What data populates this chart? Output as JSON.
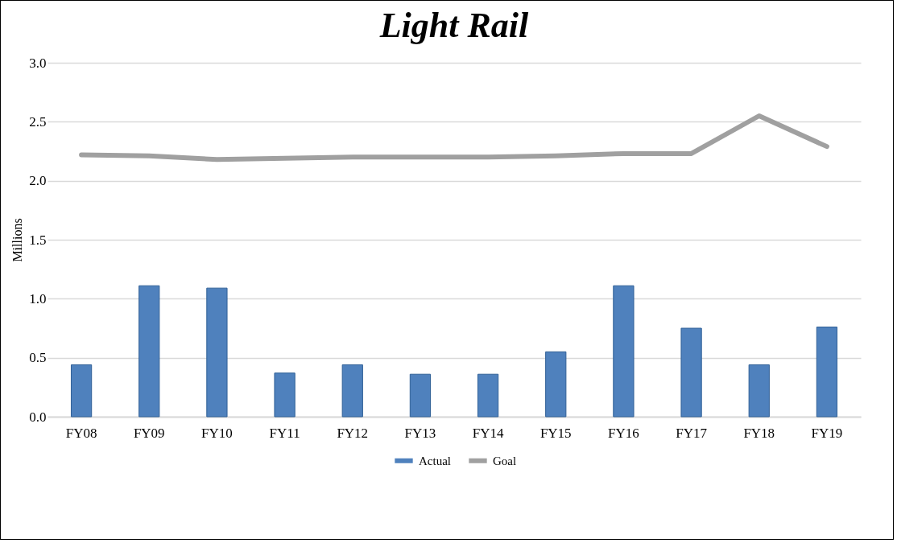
{
  "chart_data": {
    "type": "bar",
    "title": "Light Rail",
    "ylabel": "Millions",
    "categories": [
      "FY08",
      "FY09",
      "FY10",
      "FY11",
      "FY12",
      "FY13",
      "FY14",
      "FY15",
      "FY16",
      "FY17",
      "FY18",
      "FY19"
    ],
    "series": [
      {
        "name": "Actual",
        "color": "#4f81bd",
        "values": [
          0.44,
          1.11,
          1.09,
          0.37,
          0.44,
          0.36,
          0.36,
          0.55,
          1.11,
          0.75,
          0.44,
          0.76
        ]
      },
      {
        "name": "Goal",
        "type": "line",
        "color": "#a0a0a0",
        "values": [
          2.22,
          2.21,
          2.18,
          2.19,
          2.2,
          2.2,
          2.2,
          2.21,
          2.23,
          2.23,
          2.55,
          2.29
        ]
      }
    ],
    "ylim": [
      0,
      3
    ],
    "yticks": [
      {
        "value": 0,
        "label": "0.0"
      },
      {
        "value": 0.5,
        "label": "0.5"
      },
      {
        "value": 1,
        "label": "1.0"
      },
      {
        "value": 1.5,
        "label": "1.5"
      },
      {
        "value": 2,
        "label": "2.0"
      },
      {
        "value": 2.5,
        "label": "2.5"
      },
      {
        "value": 3,
        "label": "3.0"
      }
    ],
    "grid": "y",
    "legend": "bottom"
  }
}
